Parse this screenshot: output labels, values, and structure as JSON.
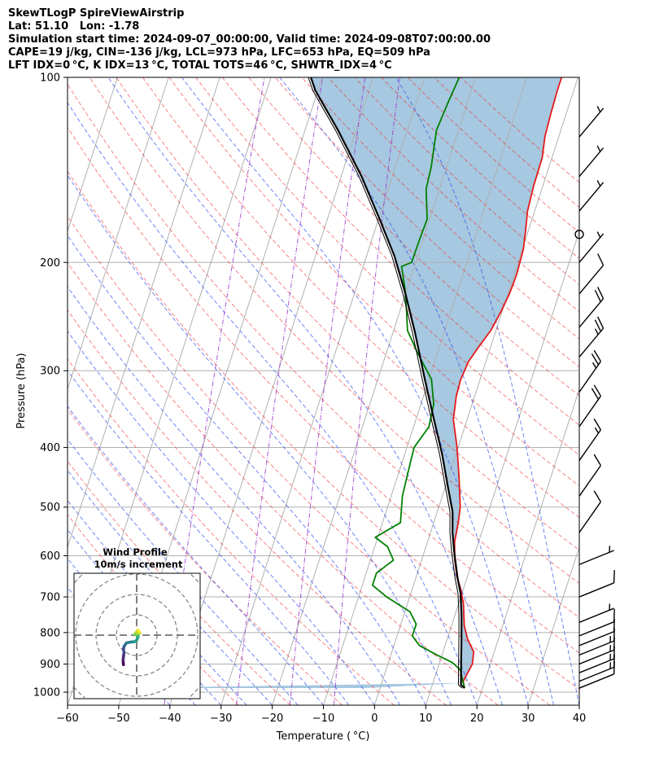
{
  "header": {
    "line1": "SkewTLogP SpireViewAirstrip",
    "line2": "Lat: 51.10   Lon: -1.78",
    "line3": "Simulation start time: 2024-09-07_00:00:00, Valid time: 2024-09-08T07:00:00.00",
    "line4": "CAPE=19 j/kg, CIN=-136 j/kg, LCL=973 hPa, LFC=653 hPa, EQ=509 hPa",
    "line5": "LFT IDX=0 °C, K IDX=13 °C, TOTAL TOTS=46 °C, SHWTR_IDX=4 °C"
  },
  "chart_data": [
    {
      "type": "line",
      "subtype": "skew-t log-p",
      "xlabel": "Temperature ( °C)",
      "ylabel": "Pressure (hPa)",
      "xlim": [
        -60,
        40
      ],
      "ylim": [
        1050,
        100
      ],
      "y_scale": "log",
      "x_ticks": [
        "−60",
        "−50",
        "−40",
        "−30",
        "−20",
        "−10",
        "0",
        "10",
        "20",
        "30",
        "40"
      ],
      "y_ticks": [
        "100",
        "200",
        "300",
        "400",
        "500",
        "600",
        "700",
        "800",
        "900",
        "1000"
      ],
      "grid": true,
      "series": [
        {
          "role": "temperature",
          "color": "#e41a1c",
          "points": [
            [
              16.5,
              985
            ],
            [
              15.8,
              960
            ],
            [
              16.5,
              900
            ],
            [
              16.0,
              860
            ],
            [
              14.0,
              820
            ],
            [
              12.5,
              780
            ],
            [
              11.0,
              720
            ],
            [
              9.5,
              680
            ],
            [
              8.0,
              650
            ],
            [
              6.5,
              610
            ],
            [
              5.3,
              570
            ],
            [
              4.8,
              530
            ],
            [
              4.2,
              500
            ],
            [
              2.2,
              450
            ],
            [
              -0.2,
              400
            ],
            [
              -2.7,
              360
            ],
            [
              -3.6,
              330
            ],
            [
              -3.8,
              310
            ],
            [
              -3.4,
              290
            ],
            [
              -2.4,
              275
            ],
            [
              -1.0,
              258
            ],
            [
              -0.2,
              240
            ],
            [
              0.3,
              225
            ],
            [
              0.5,
              210
            ],
            [
              0.2,
              190
            ],
            [
              -0.7,
              175
            ],
            [
              -1.4,
              165
            ],
            [
              -1.8,
              150
            ],
            [
              -1.9,
              135
            ],
            [
              -2.7,
              125
            ],
            [
              -3.0,
              115
            ],
            [
              -3.2,
              105
            ],
            [
              -3.2,
              100
            ]
          ]
        },
        {
          "role": "dewpoint",
          "color": "#008000",
          "points": [
            [
              16.5,
              985
            ],
            [
              14.5,
              920
            ],
            [
              12.5,
              895
            ],
            [
              9.0,
              870
            ],
            [
              5.0,
              840
            ],
            [
              3.0,
              810
            ],
            [
              3.0,
              775
            ],
            [
              1.0,
              740
            ],
            [
              -4.5,
              700
            ],
            [
              -8.0,
              670
            ],
            [
              -8.0,
              640
            ],
            [
              -5.5,
              610
            ],
            [
              -7.5,
              580
            ],
            [
              -10.5,
              560
            ],
            [
              -6.5,
              530
            ],
            [
              -7.0,
              510
            ],
            [
              -7.8,
              480
            ],
            [
              -8.2,
              440
            ],
            [
              -8.6,
              400
            ],
            [
              -7.0,
              370
            ],
            [
              -7.5,
              340
            ],
            [
              -9.5,
              310
            ],
            [
              -14.0,
              280
            ],
            [
              -17.3,
              258
            ],
            [
              -18.7,
              240
            ],
            [
              -20.5,
              220
            ],
            [
              -22.5,
              203
            ],
            [
              -20.8,
              200
            ],
            [
              -20.7,
              185
            ],
            [
              -20.5,
              170
            ],
            [
              -22.6,
              152
            ],
            [
              -23.0,
              140
            ],
            [
              -24.3,
              122
            ],
            [
              -23.8,
              110
            ],
            [
              -23.2,
              100
            ]
          ]
        },
        {
          "role": "parcel",
          "color": "#000000",
          "points": [
            [
              16.5,
              985
            ],
            [
              15.6,
              973
            ],
            [
              14.3,
              900
            ],
            [
              12.8,
              820
            ],
            [
              11.3,
              750
            ],
            [
              9.7,
              690
            ],
            [
              8.2,
              653
            ],
            [
              5.8,
              590
            ],
            [
              4.3,
              550
            ],
            [
              3.0,
              509
            ],
            [
              0.3,
              460
            ],
            [
              -2.7,
              410
            ],
            [
              -6.5,
              360
            ],
            [
              -10.8,
              310
            ],
            [
              -15.7,
              260
            ],
            [
              -20.0,
              225
            ],
            [
              -24.6,
              195
            ],
            [
              -29.8,
              170
            ],
            [
              -36.0,
              145
            ],
            [
              -43.5,
              122
            ],
            [
              -50.5,
              105
            ],
            [
              -52.2,
              100
            ]
          ]
        }
      ],
      "shading": "CAPE/CIN area between parcel path and temperature profile",
      "barbs": [
        {
          "p": 985,
          "knots": 10
        },
        {
          "p": 960,
          "knots": 15
        },
        {
          "p": 930,
          "knots": 15
        },
        {
          "p": 900,
          "knots": 15
        },
        {
          "p": 870,
          "knots": 15
        },
        {
          "p": 840,
          "knots": 10
        },
        {
          "p": 810,
          "knots": 10
        },
        {
          "p": 770,
          "knots": 5
        },
        {
          "p": 700,
          "knots": 10
        },
        {
          "p": 620,
          "knots": 5
        },
        {
          "p": 550,
          "knots": 10
        },
        {
          "p": 480,
          "knots": 10
        },
        {
          "p": 420,
          "knots": 15
        },
        {
          "p": 370,
          "knots": 20
        },
        {
          "p": 325,
          "knots": 25
        },
        {
          "p": 285,
          "knots": 25
        },
        {
          "p": 255,
          "knots": 20
        },
        {
          "p": 225,
          "knots": 10
        },
        {
          "p": 200,
          "knots": 5
        },
        {
          "p": 180,
          "calm": true
        },
        {
          "p": 165,
          "knots": 5
        },
        {
          "p": 145,
          "knots": 5
        },
        {
          "p": 125,
          "knots": 5
        }
      ]
    },
    {
      "type": "scatter",
      "subtype": "hodograph",
      "title": "Wind Profile",
      "subtitle": "10m/s increment",
      "rings": 4,
      "points": [
        [
          -6.5,
          -14.5
        ],
        [
          -6.7,
          -12.5
        ],
        [
          -6.5,
          -10.5
        ],
        [
          -6.2,
          -8.6
        ],
        [
          -6.5,
          -7.0
        ],
        [
          -6.2,
          -5.5
        ],
        [
          -5.0,
          -3.8
        ],
        [
          -3.0,
          -3.4
        ],
        [
          -1.0,
          -3.2
        ],
        [
          0,
          -2.5
        ],
        [
          0.8,
          -0.6
        ],
        [
          -0.2,
          0.4
        ],
        [
          -1.0,
          0.2
        ],
        [
          -0.3,
          1.3
        ],
        [
          1.5,
          0.9
        ],
        [
          1.3,
          1.7
        ],
        [
          0.5,
          2.5
        ]
      ]
    }
  ]
}
